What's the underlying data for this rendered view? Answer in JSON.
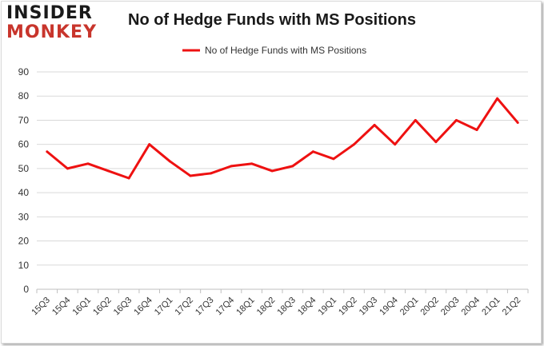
{
  "logo": {
    "line1": "INSIDER",
    "line2": "MONKEY"
  },
  "chart_data": {
    "type": "line",
    "title": "No of Hedge Funds with MS Positions",
    "xlabel": "",
    "ylabel": "",
    "categories": [
      "15Q3",
      "15Q4",
      "16Q1",
      "16Q2",
      "16Q3",
      "16Q4",
      "17Q1",
      "17Q2",
      "17Q3",
      "17Q4",
      "18Q1",
      "18Q2",
      "18Q3",
      "18Q4",
      "19Q1",
      "19Q2",
      "19Q3",
      "19Q4",
      "20Q1",
      "20Q2",
      "20Q3",
      "20Q4",
      "21Q1",
      "21Q2"
    ],
    "series": [
      {
        "name": "No of Hedge Funds with MS Positions",
        "color": "#ee1111",
        "values": [
          57,
          50,
          52,
          49,
          46,
          60,
          53,
          47,
          48,
          51,
          52,
          49,
          51,
          57,
          54,
          60,
          68,
          60,
          70,
          61,
          70,
          66,
          79,
          69
        ]
      }
    ],
    "ylim": [
      0,
      90
    ],
    "yticks": [
      0,
      10,
      20,
      30,
      40,
      50,
      60,
      70,
      80,
      90
    ],
    "grid": true,
    "legend": "top-center"
  }
}
